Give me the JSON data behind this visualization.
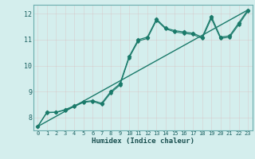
{
  "xlabel": "Humidex (Indice chaleur)",
  "bg_color": "#d4eeed",
  "grid_color": "#b8d8d4",
  "line_color": "#1a7a6a",
  "xlim": [
    -0.5,
    23.5
  ],
  "ylim": [
    7.5,
    12.35
  ],
  "xticks": [
    0,
    1,
    2,
    3,
    4,
    5,
    6,
    7,
    8,
    9,
    10,
    11,
    12,
    13,
    14,
    15,
    16,
    17,
    18,
    19,
    20,
    21,
    22,
    23
  ],
  "yticks": [
    8,
    9,
    10,
    11,
    12
  ],
  "series1_x": [
    0,
    1,
    2,
    3,
    4,
    5,
    6,
    7,
    8,
    9,
    10,
    11,
    12,
    13,
    14,
    15,
    16,
    17,
    18,
    19,
    20,
    21,
    22,
    23
  ],
  "series1_y": [
    7.65,
    8.2,
    8.2,
    8.3,
    8.45,
    8.6,
    8.65,
    8.55,
    9.0,
    9.3,
    10.35,
    11.0,
    11.1,
    11.8,
    11.45,
    11.35,
    11.3,
    11.25,
    11.1,
    11.9,
    11.1,
    11.15,
    11.65,
    12.15
  ],
  "series2_x": [
    0,
    1,
    2,
    3,
    4,
    5,
    6,
    7,
    8,
    9,
    10,
    11,
    12,
    13,
    14,
    15,
    16,
    17,
    18,
    19,
    20,
    21,
    22,
    23
  ],
  "series2_y": [
    7.65,
    8.18,
    8.2,
    8.28,
    8.42,
    8.58,
    8.62,
    8.5,
    8.95,
    9.25,
    10.3,
    10.95,
    11.05,
    11.75,
    11.42,
    11.3,
    11.25,
    11.2,
    11.05,
    11.82,
    11.05,
    11.1,
    11.58,
    12.1
  ],
  "series3_x": [
    0,
    23
  ],
  "series3_y": [
    7.65,
    12.15
  ],
  "marker_style": "D",
  "marker_size": 2.2,
  "lw1": 0.9,
  "lw2": 0.8,
  "lw3": 1.0
}
